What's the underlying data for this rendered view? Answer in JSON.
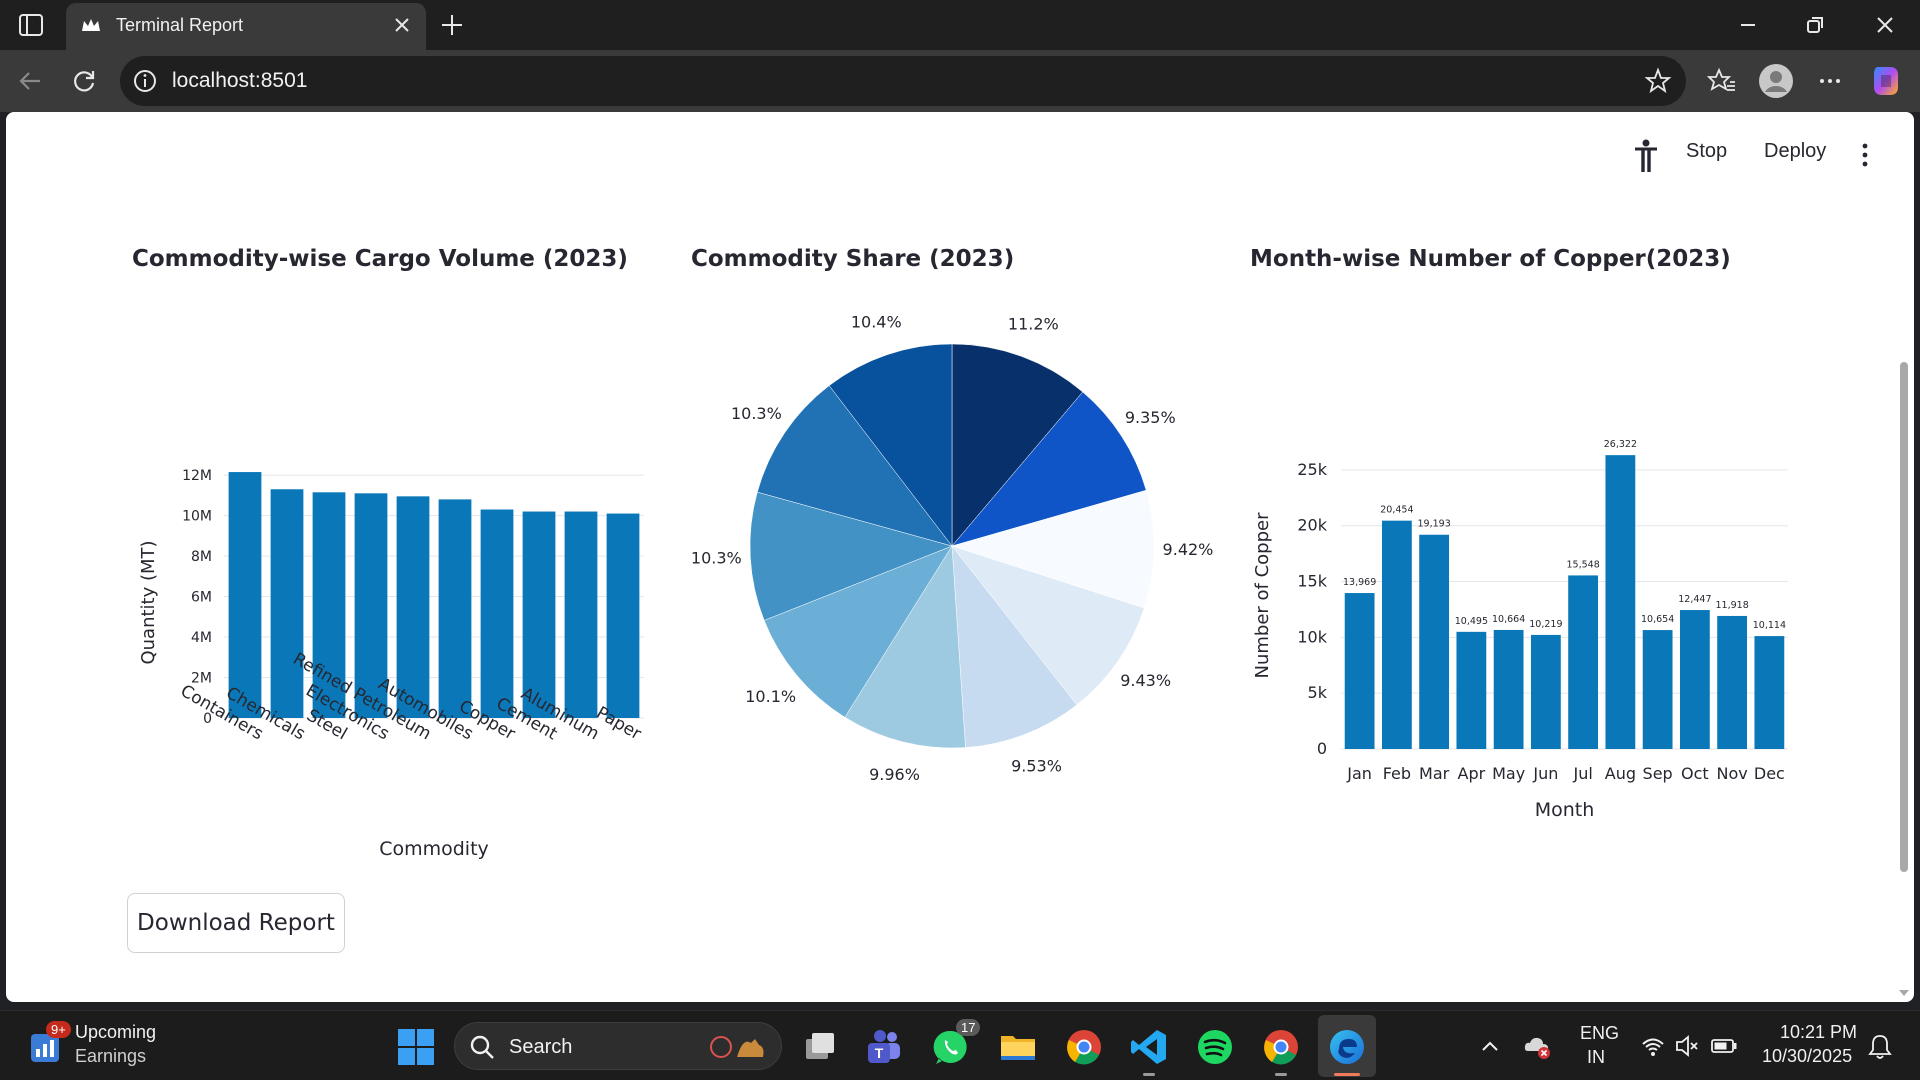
{
  "browser": {
    "tab_title": "Terminal Report",
    "url": "localhost:8501"
  },
  "app_header": {
    "stop_label": "Stop",
    "deploy_label": "Deploy"
  },
  "charts": {
    "bar_volume_title": "Commodity-wise Cargo Volume (2023)",
    "pie_title": "Commodity Share (2023)",
    "bar_copper_title": "Month-wise Number of Copper(2023)"
  },
  "chart_data": [
    {
      "type": "bar",
      "title": "Commodity-wise Cargo Volume (2023)",
      "xlabel": "Commodity",
      "ylabel": "Quantity (MT)",
      "categories": [
        "Containers",
        "Chemicals",
        "Steel",
        "Electronics",
        "Refined Petroleum",
        "Automobiles",
        "Copper",
        "Cement",
        "Aluminum",
        "Paper"
      ],
      "values": [
        12150000,
        11300000,
        11150000,
        11100000,
        10950000,
        10800000,
        10300000,
        10200000,
        10200000,
        10100000
      ],
      "yticks": [
        "0",
        "2M",
        "4M",
        "6M",
        "8M",
        "10M",
        "12M"
      ],
      "ylim": [
        0,
        12400000
      ],
      "color": "#0a77b8",
      "grid": true
    },
    {
      "type": "pie",
      "title": "Commodity Share (2023)",
      "labels": [
        "11.2%",
        "9.35%",
        "9.42%",
        "9.43%",
        "9.53%",
        "9.96%",
        "10.1%",
        "10.3%",
        "10.3%",
        "10.4%"
      ],
      "values": [
        11.2,
        9.35,
        9.42,
        9.43,
        9.53,
        9.96,
        10.1,
        10.3,
        10.3,
        10.4
      ],
      "colors": [
        "#08306b",
        "#1055c8",
        "#f7fbff",
        "#deebf7",
        "#c6dbef",
        "#9ecae1",
        "#6baed6",
        "#4292c6",
        "#2171b5",
        "#08519c"
      ]
    },
    {
      "type": "bar",
      "title": "Month-wise Number of Copper(2023)",
      "xlabel": "Month",
      "ylabel": "Number of Copper",
      "categories": [
        "Jan",
        "Feb",
        "Mar",
        "Apr",
        "May",
        "Jun",
        "Jul",
        "Aug",
        "Sep",
        "Oct",
        "Nov",
        "Dec"
      ],
      "values": [
        13969,
        20454,
        19193,
        10495,
        10664,
        10219,
        15548,
        26322,
        10654,
        12447,
        11918,
        10114
      ],
      "value_labels": [
        "13,969",
        "20,454",
        "19,193",
        "10,495",
        "10,664",
        "10,219",
        "15,548",
        "26,322",
        "10,654",
        "12,447",
        "11,918",
        "10,114"
      ],
      "yticks": [
        "0",
        "5k",
        "10k",
        "15k",
        "20k",
        "25k"
      ],
      "ylim": [
        0,
        27500
      ],
      "color": "#0a77b8",
      "grid": true
    }
  ],
  "download_label": "Download Report",
  "taskbar": {
    "widget_badge": "9+",
    "widget_line1": "Upcoming",
    "widget_line2": "Earnings",
    "search_label": "Search",
    "whatsapp_badge": "17",
    "lang_line1": "ENG",
    "lang_line2": "IN",
    "time": "10:21 PM",
    "date": "10/30/2025"
  }
}
